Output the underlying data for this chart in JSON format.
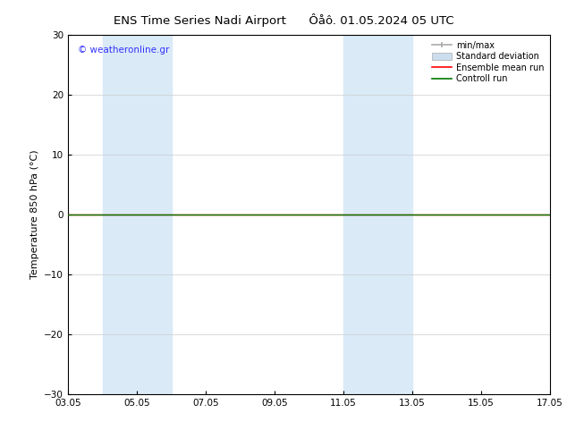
{
  "title": "ENS Time Series Nadi Airport",
  "title2": "Ôåô. 01.05.2024 05 UTC",
  "ylabel": "Temperature 850 hPa (°C)",
  "xlim": [
    0,
    14
  ],
  "ylim": [
    -30,
    30
  ],
  "yticks": [
    -30,
    -20,
    -10,
    0,
    10,
    20,
    30
  ],
  "xtick_labels": [
    "03.05",
    "05.05",
    "07.05",
    "09.05",
    "11.05",
    "13.05",
    "15.05",
    "17.05"
  ],
  "xtick_positions": [
    0,
    2,
    4,
    6,
    8,
    10,
    12,
    14
  ],
  "shaded_bands": [
    {
      "x_start": 1.0,
      "x_end": 3.0
    },
    {
      "x_start": 8.0,
      "x_end": 10.0
    }
  ],
  "background_color": "#ffffff",
  "band_color": "#daeaf7",
  "grid_color": "#cccccc",
  "control_run_color": "#007700",
  "ensemble_mean_color": "#ff0000",
  "minmax_color": "#aaaaaa",
  "stddev_color": "#ccddee",
  "watermark_text": "© weatheronline.gr",
  "watermark_color": "#3333ff",
  "legend_labels": [
    "min/max",
    "Standard deviation",
    "Ensemble mean run",
    "Controll run"
  ],
  "fig_width": 6.34,
  "fig_height": 4.9,
  "dpi": 100
}
